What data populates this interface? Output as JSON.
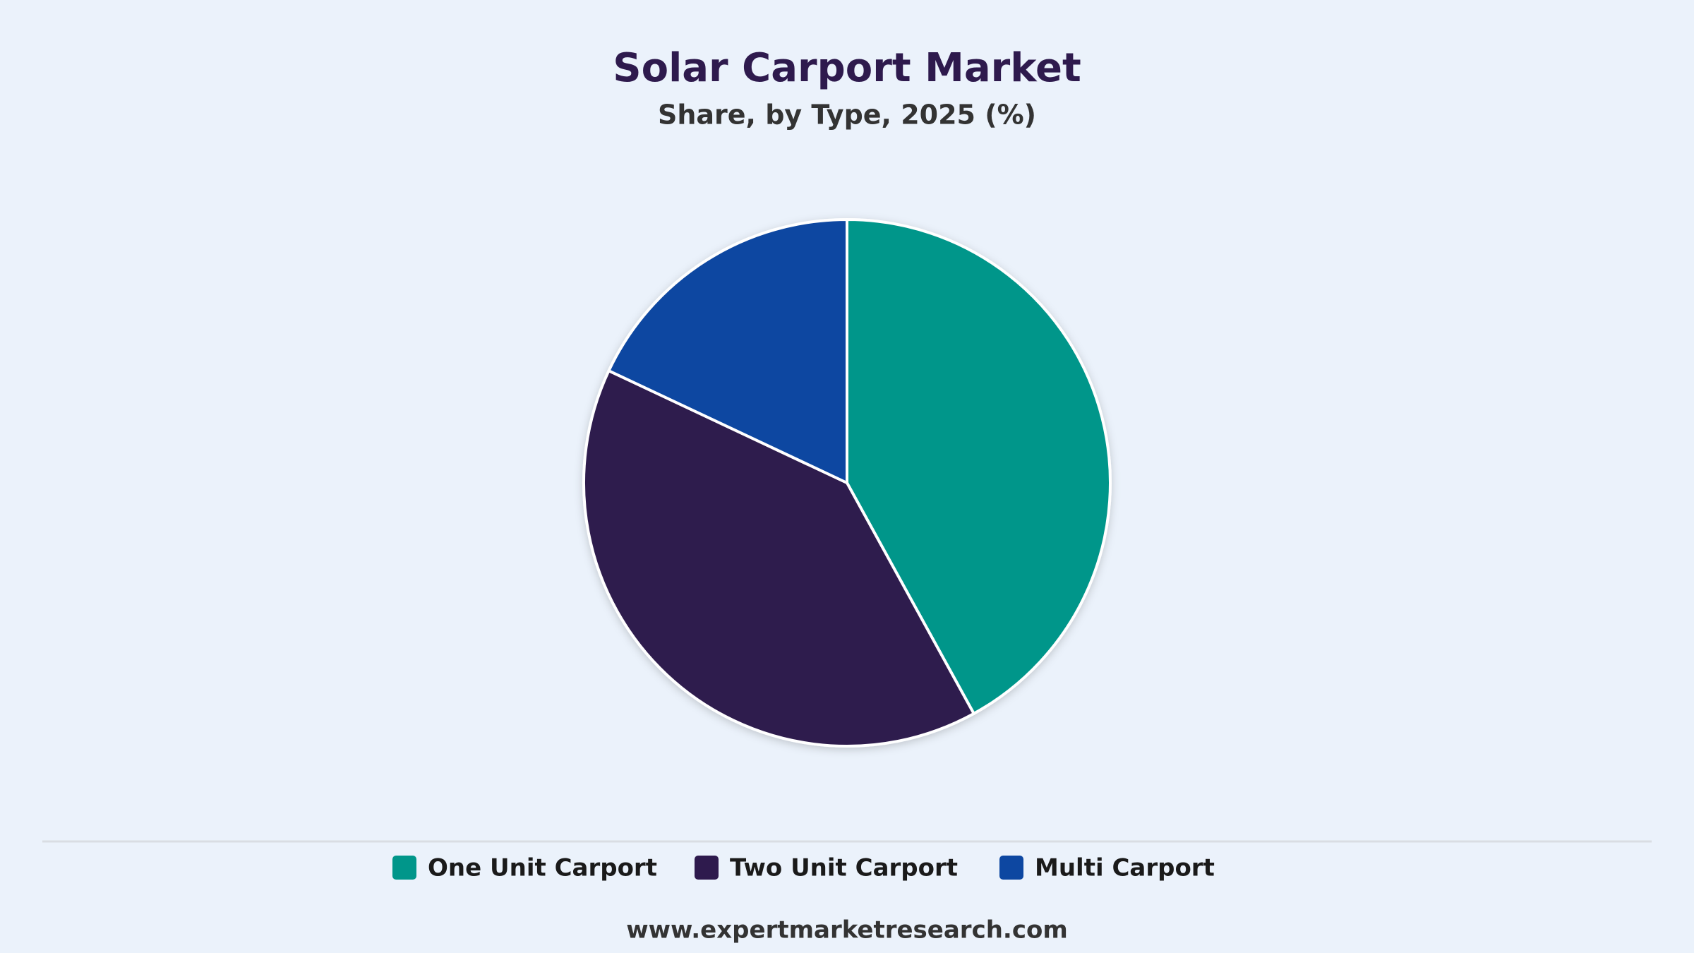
{
  "chart_data": {
    "type": "pie",
    "title": "Solar Carport Market",
    "subtitle": "Share, by Type, 2025 (%)",
    "categories": [
      "One Unit Carport",
      "Two Unit Carport",
      "Multi Carport"
    ],
    "values": [
      42,
      40,
      18
    ],
    "colors": [
      "#00968a",
      "#2e1a4d",
      "#0d47a1"
    ],
    "legend": "bottom",
    "source": "www.expertmarketresearch.com"
  }
}
